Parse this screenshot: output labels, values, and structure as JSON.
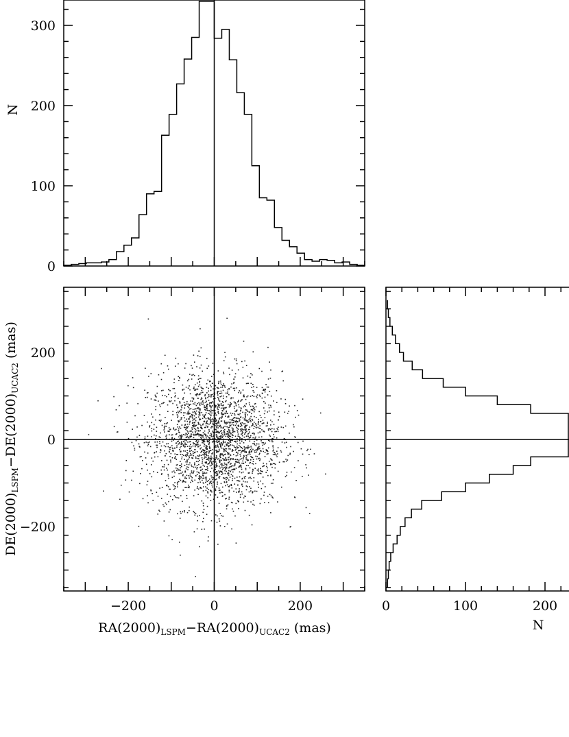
{
  "chart_data": [
    {
      "type": "histogram",
      "panel": "top",
      "xlabel": "",
      "ylabel": "N",
      "xlim": [
        -350,
        350
      ],
      "ylim": [
        0,
        330
      ],
      "yticks": [
        0,
        100,
        200,
        300
      ],
      "bin_width": 17.5,
      "bins_left": [
        -350,
        -332.5,
        -315,
        -297.5,
        -280,
        -262.5,
        -245,
        -227.5,
        -210,
        -192.5,
        -175,
        -157.5,
        -140,
        -122.5,
        -105,
        -87.5,
        -70,
        -52.5,
        -35,
        -17.5,
        0,
        17.5,
        35,
        52.5,
        70,
        87.5,
        105,
        122.5,
        140,
        157.5,
        175,
        192.5,
        210,
        227.5,
        245,
        262.5,
        280,
        297.5,
        315,
        332.5
      ],
      "counts": [
        1,
        2,
        3,
        4,
        4,
        5,
        8,
        18,
        26,
        35,
        64,
        90,
        93,
        163,
        189,
        227,
        258,
        285,
        330,
        330,
        284,
        295,
        257,
        216,
        189,
        125,
        85,
        82,
        48,
        32,
        24,
        16,
        8,
        6,
        8,
        7,
        4,
        5,
        2,
        1
      ],
      "reference_line_x": 0
    },
    {
      "type": "scatter",
      "panel": "main",
      "xlabel": "RA(2000)",
      "xlabel_sub1": "LSPM",
      "xlabel_mid": "−RA(2000)",
      "xlabel_sub2": "UCAC2",
      "xlabel_unit": " (mas)",
      "ylabel": "DE(2000)",
      "ylabel_sub1": "LSPM",
      "ylabel_mid": "−DE(2000)",
      "ylabel_sub2": "UCAC2",
      "ylabel_unit": " (mas)",
      "xlim": [
        -350,
        350
      ],
      "ylim": [
        -350,
        350
      ],
      "xticks": [
        -200,
        0,
        200
      ],
      "yticks": [
        -200,
        0,
        200
      ],
      "tick_labels_x": [
        "−200",
        "0",
        "200"
      ],
      "tick_labels_y": [
        "−200",
        "0",
        "200"
      ],
      "n_points": 2600,
      "distribution": "approximately gaussian, centred at (0,0), sigma ~ 75 mas",
      "reference_lines": {
        "x": 0,
        "y": 0
      }
    },
    {
      "type": "histogram",
      "panel": "right",
      "orientation": "horizontal",
      "xlabel": "N",
      "ylabel": "",
      "xlim": [
        0,
        230
      ],
      "ylim": [
        -350,
        350
      ],
      "xticks": [
        0,
        100,
        200
      ],
      "bin_width": 20,
      "bins_bottom": [
        -340,
        -320,
        -300,
        -280,
        -260,
        -240,
        -220,
        -200,
        -180,
        -160,
        -140,
        -120,
        -100,
        -80,
        -60,
        -40,
        -20,
        0,
        20,
        40,
        60,
        80,
        100,
        120,
        140,
        160,
        180,
        200,
        220,
        240,
        260,
        280,
        300
      ],
      "counts": [
        2,
        3,
        4,
        6,
        9,
        14,
        18,
        24,
        32,
        45,
        70,
        100,
        130,
        160,
        182,
        230,
        230,
        230,
        230,
        230,
        182,
        140,
        100,
        72,
        46,
        33,
        22,
        17,
        12,
        8,
        5,
        3,
        2
      ],
      "reference_line_y": 0
    }
  ]
}
